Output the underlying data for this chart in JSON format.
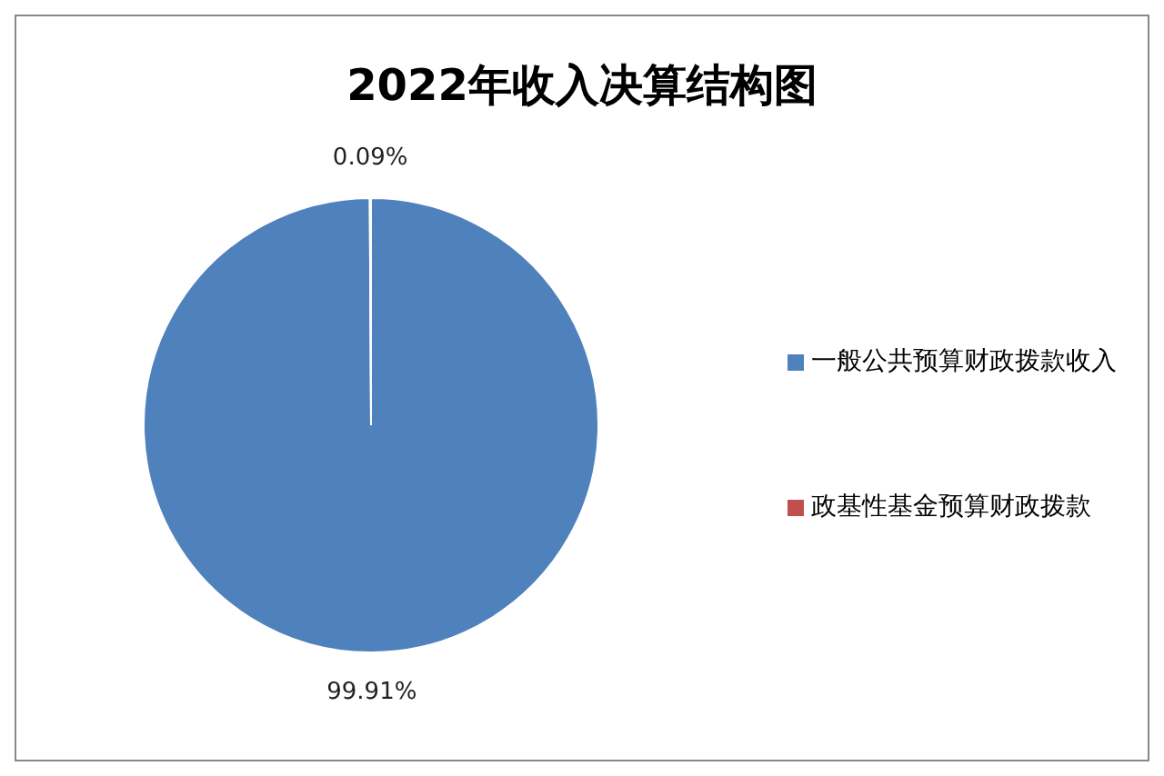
{
  "chart_data": {
    "type": "pie",
    "title": "2022年收入决算结构图",
    "categories": [
      "一般公共预算财政拨款收入",
      "政基性基金预算财政拨款"
    ],
    "values": [
      99.91,
      0.09
    ],
    "colors": [
      "#4f81bd",
      "#c0504d"
    ],
    "value_labels": [
      "99.91%",
      "0.09%"
    ],
    "legend": "right"
  }
}
